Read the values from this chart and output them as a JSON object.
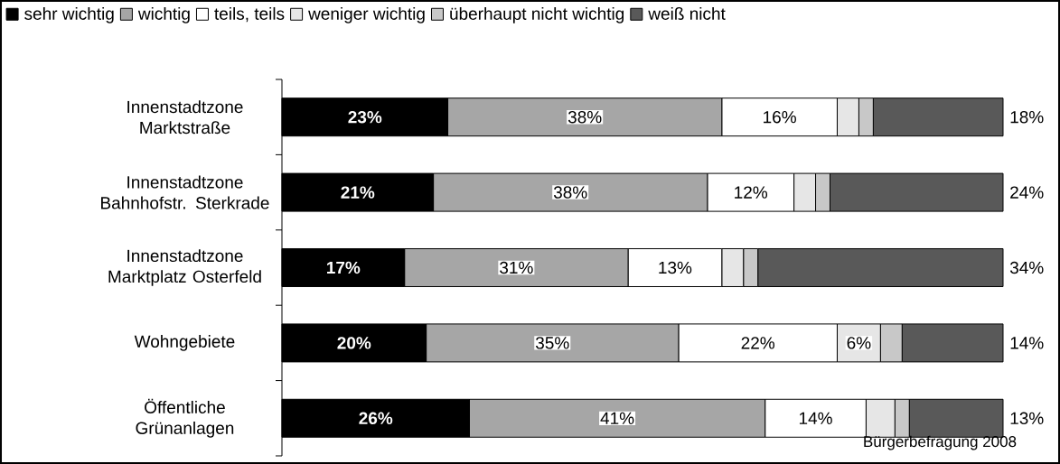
{
  "chart_data": {
    "type": "bar",
    "orientation": "horizontal",
    "stacked": true,
    "categories": [
      "Innenstadtzone Marktstraße",
      "Innenstadtzone Bahnhofstr. Sterkrade",
      "Innenstadtzone Marktplatz Osterfeld",
      "Wohngebiete",
      "Öffentliche Grünanlagen"
    ],
    "series": [
      {
        "name": "sehr wichtig",
        "color": "#000000",
        "values": [
          23,
          21,
          17,
          20,
          26
        ],
        "value_labels": [
          "23%",
          "21%",
          "17%",
          "20%",
          "26%"
        ]
      },
      {
        "name": "wichtig",
        "color": "#a6a6a6",
        "values": [
          38,
          38,
          31,
          35,
          41
        ],
        "value_labels": [
          "38%",
          "38%",
          "31%",
          "35%",
          "41%"
        ]
      },
      {
        "name": "teils, teils",
        "color": "#ffffff",
        "values": [
          16,
          12,
          13,
          22,
          14
        ],
        "value_labels": [
          "16%",
          "12%",
          "13%",
          "22%",
          "14%"
        ]
      },
      {
        "name": "weniger wichtig",
        "color": "#e6e6e6",
        "values": [
          3,
          3,
          3,
          6,
          4
        ],
        "value_labels": [
          null,
          null,
          null,
          "6%",
          null
        ]
      },
      {
        "name": "überhaupt nicht wichtig",
        "color": "#c8c8c8",
        "values": [
          2,
          2,
          2,
          3,
          2
        ],
        "value_labels": [
          null,
          null,
          null,
          null,
          null
        ]
      },
      {
        "name": "weiß nicht",
        "color": "#595959",
        "values": [
          18,
          24,
          34,
          14,
          13
        ],
        "value_labels": [
          "18%",
          "24%",
          "34%",
          "14%",
          "13%"
        ]
      }
    ],
    "xlim": [
      0,
      100
    ],
    "tick_labels": "y",
    "legend": "top",
    "annotations": [
      "Bürgerbefragung 2008"
    ]
  }
}
